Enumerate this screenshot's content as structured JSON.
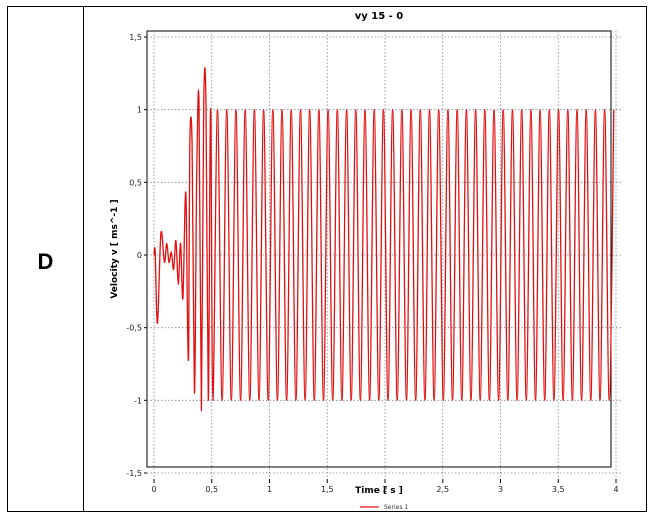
{
  "panel": {
    "label": "D"
  },
  "chart_data": {
    "type": "line",
    "title": "vy 15 - 0",
    "xlabel": "Time [ s ]",
    "ylabel": "Velocity v [ ms^-1 ]",
    "xlim": [
      0,
      4
    ],
    "ylim": [
      -1.5,
      1.5
    ],
    "x_ticks": [
      "0",
      "0,5",
      "1",
      "1,5",
      "2",
      "2,5",
      "3",
      "3,5",
      "4"
    ],
    "x_tick_values": [
      0,
      0.5,
      1,
      1.5,
      2,
      2.5,
      3,
      3.5,
      4
    ],
    "y_ticks": [
      "1,5",
      "1",
      "0,5",
      "0",
      "-0,5",
      "-1",
      "-1,5"
    ],
    "y_tick_values": [
      1.5,
      1,
      0.5,
      0,
      -0.5,
      -1,
      -1.5
    ],
    "grid": true,
    "legend_position": "bottom-center",
    "series": [
      {
        "name": "Series 1",
        "color": "#e01010",
        "period_s": 0.0798,
        "steady_amplitude": 1.0,
        "x": [
          0,
          0.01,
          0.03,
          0.06,
          0.09,
          0.11,
          0.13,
          0.15,
          0.17,
          0.19,
          0.21,
          0.23,
          0.25,
          0.27,
          0.28,
          0.29,
          0.3,
          0.31,
          0.33,
          0.35,
          0.37,
          0.39,
          0.41,
          0.43,
          0.45,
          0.47,
          0.49,
          0.51
        ],
        "values": [
          0,
          0.02,
          -0.47,
          0.15,
          -0.05,
          0.08,
          -0.05,
          0.02,
          -0.1,
          0.1,
          -0.2,
          0.08,
          -0.3,
          0.38,
          0.3,
          -0.45,
          -0.65,
          0.75,
          0.76,
          -0.95,
          0.55,
          1.05,
          -1.07,
          1.02,
          1.04,
          -1.0,
          1.01,
          -1.0
        ]
      }
    ]
  }
}
